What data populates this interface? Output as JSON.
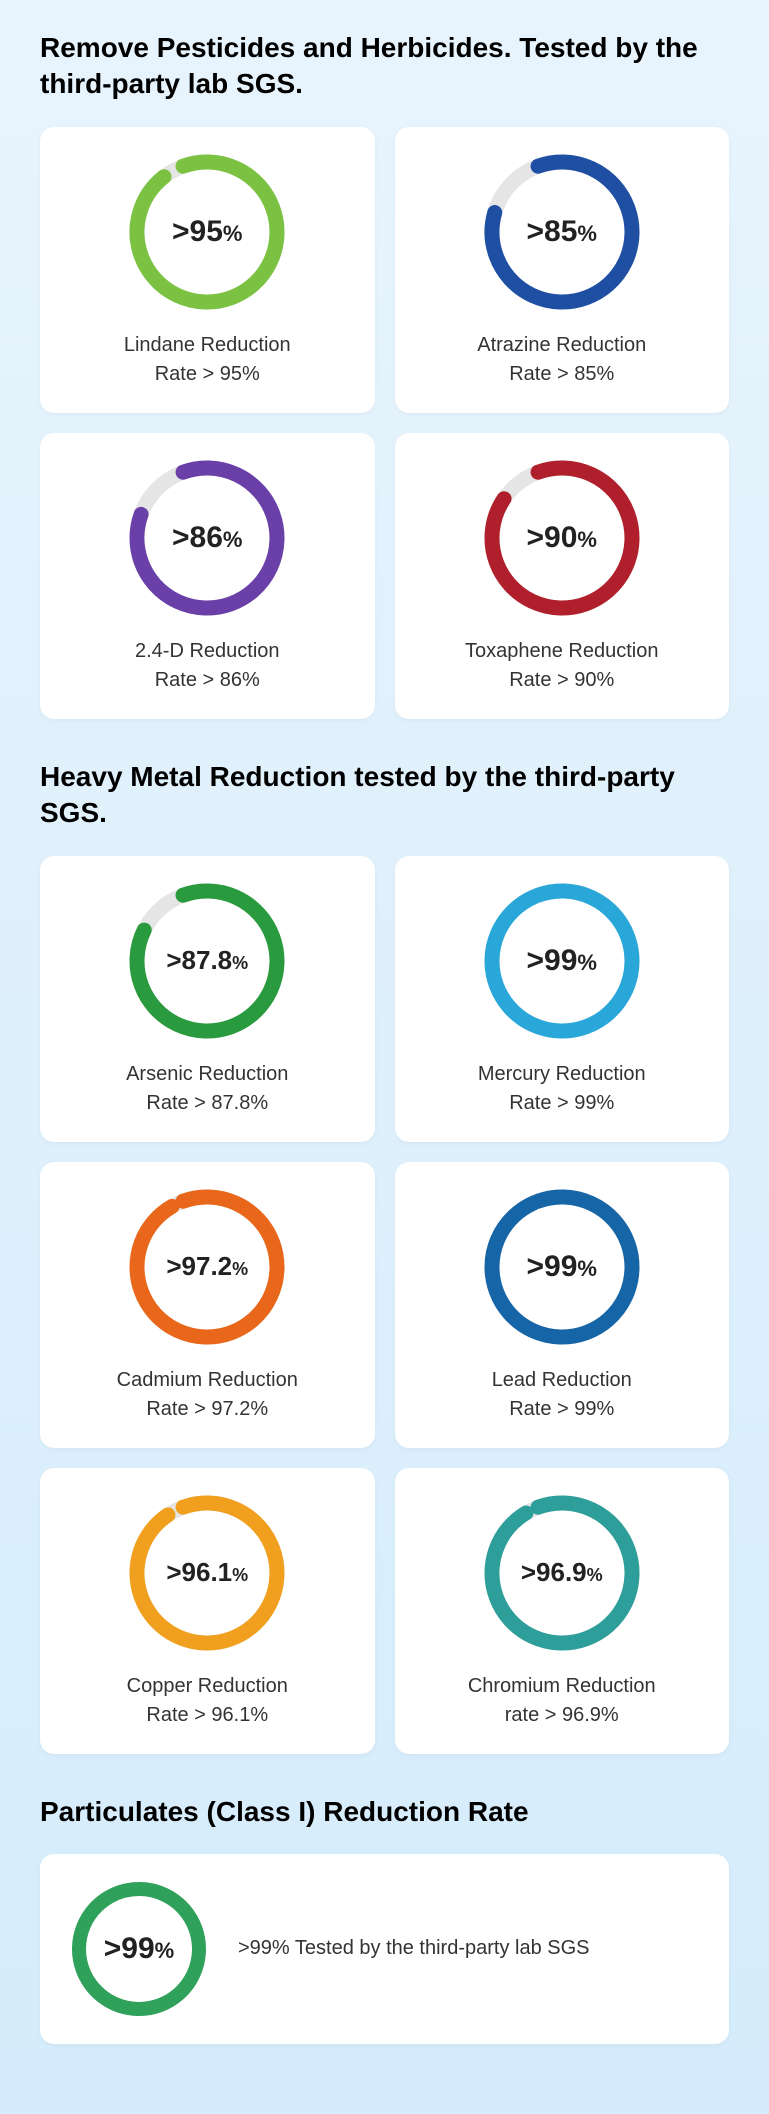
{
  "ring": {
    "track_color": "#e5e5e5",
    "stroke_width": 15,
    "radius": 70,
    "size": 170,
    "start_angle_deg": -110
  },
  "sections": [
    {
      "title": "Remove Pesticides and Herbicides. Tested by the third-party lab SGS.",
      "cards": [
        {
          "center": ">95",
          "pct": "%",
          "label_l1": "Lindane Reduction",
          "label_l2": "Rate > 95%",
          "color": "#7cc242",
          "percent": 95,
          "size_class": ""
        },
        {
          "center": ">85",
          "pct": "%",
          "label_l1": "Atrazine Reduction",
          "label_l2": "Rate > 85%",
          "color": "#1e4fa3",
          "percent": 85,
          "size_class": ""
        },
        {
          "center": ">86",
          "pct": "%",
          "label_l1": "2.4-D Reduction",
          "label_l2": "Rate  > 86%",
          "color": "#6a3fa8",
          "percent": 86,
          "size_class": ""
        },
        {
          "center": ">90",
          "pct": "%",
          "label_l1": "Toxaphene Reduction",
          "label_l2": "Rate > 90%",
          "color": "#b0202c",
          "percent": 90,
          "size_class": ""
        }
      ]
    },
    {
      "title": "Heavy Metal Reduction tested by the third-party SGS.",
      "cards": [
        {
          "center": ">87.8",
          "pct": "%",
          "label_l1": "Arsenic Reduction",
          "label_l2": "Rate > 87.8%",
          "color": "#2a9a3e",
          "percent": 87.8,
          "size_class": "sm"
        },
        {
          "center": ">99",
          "pct": "%",
          "label_l1": "Mercury Reduction",
          "label_l2": "Rate > 99%",
          "color": "#29a7d9",
          "percent": 99,
          "size_class": ""
        },
        {
          "center": ">97.2",
          "pct": "%",
          "label_l1": "Cadmium Reduction",
          "label_l2": "Rate > 97.2%",
          "color": "#e9671a",
          "percent": 97.2,
          "size_class": "sm"
        },
        {
          "center": ">99",
          "pct": "%",
          "label_l1": "Lead Reduction",
          "label_l2": "Rate > 99%",
          "color": "#1665a7",
          "percent": 99,
          "size_class": ""
        },
        {
          "center": ">96.1",
          "pct": "%",
          "label_l1": "Copper Reduction",
          "label_l2": "Rate > 96.1%",
          "color": "#f0a01e",
          "percent": 96.1,
          "size_class": "sm"
        },
        {
          "center": ">96.9",
          "pct": "%",
          "label_l1": "Chromium Reduction",
          "label_l2": "rate > 96.9%",
          "color": "#2d9e99",
          "percent": 96.9,
          "size_class": "sm"
        }
      ]
    }
  ],
  "particulates": {
    "title": "Particulates (Class I) Reduction Rate",
    "center": ">99",
    "pct": "%",
    "text": ">99% Tested by the third-party lab SGS",
    "color": "#2fa15a",
    "percent": 99,
    "ring_size": 150,
    "ring_radius": 60,
    "ring_stroke": 14
  }
}
